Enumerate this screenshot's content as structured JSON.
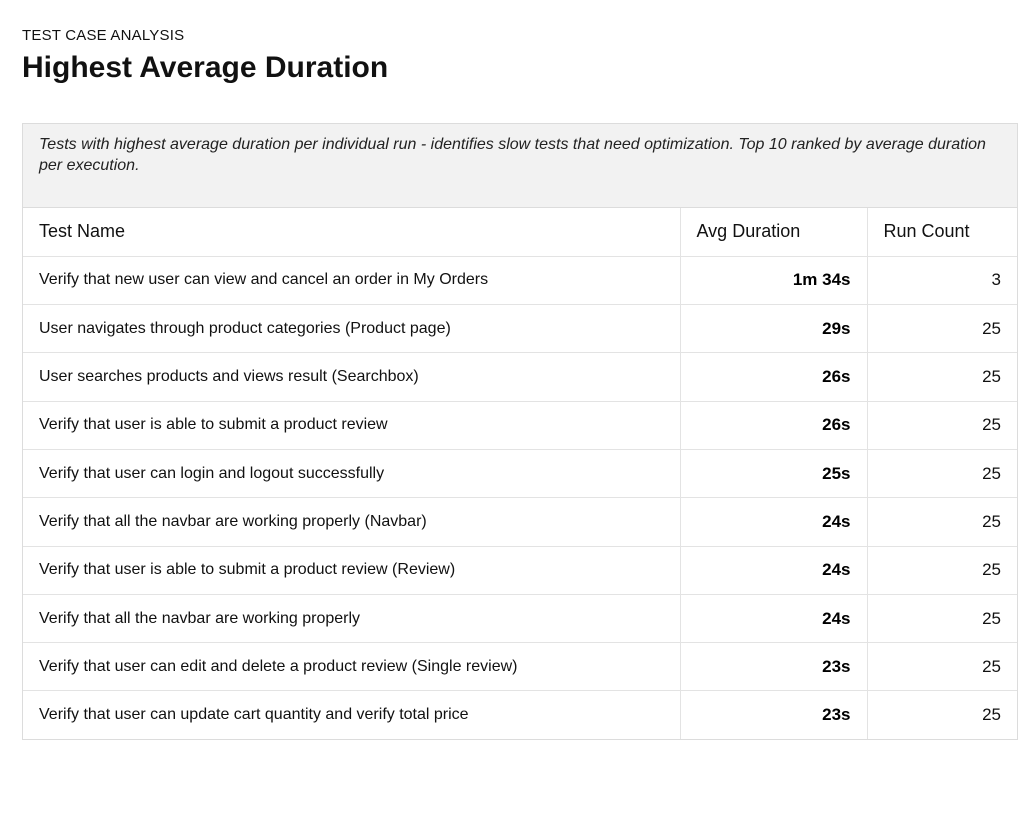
{
  "header": {
    "eyebrow": "TEST CASE ANALYSIS",
    "title": "Highest Average Duration"
  },
  "description": "Tests with highest average duration per individual run - identifies slow tests that need optimization. Top 10 ranked by average duration per execution.",
  "table": {
    "columns": [
      "Test Name",
      "Avg Duration",
      "Run Count"
    ],
    "rows": [
      {
        "name": "Verify that new user can view and cancel an order in My Orders",
        "duration": "1m 34s",
        "runs": "3"
      },
      {
        "name": "User navigates through product categories (Product page)",
        "duration": "29s",
        "runs": "25"
      },
      {
        "name": "User searches products and views result (Searchbox)",
        "duration": "26s",
        "runs": "25"
      },
      {
        "name": "Verify that user is able to submit a product review",
        "duration": "26s",
        "runs": "25"
      },
      {
        "name": "Verify that user can login and logout successfully",
        "duration": "25s",
        "runs": "25"
      },
      {
        "name": "Verify that all the navbar are working properly (Navbar)",
        "duration": "24s",
        "runs": "25"
      },
      {
        "name": "Verify that user is able to submit a product review (Review)",
        "duration": "24s",
        "runs": "25"
      },
      {
        "name": "Verify that all the navbar are working properly",
        "duration": "24s",
        "runs": "25"
      },
      {
        "name": "Verify that user can edit and delete a product review (Single review)",
        "duration": "23s",
        "runs": "25"
      },
      {
        "name": "Verify that user can update cart quantity and verify total price",
        "duration": "23s",
        "runs": "25"
      }
    ]
  }
}
